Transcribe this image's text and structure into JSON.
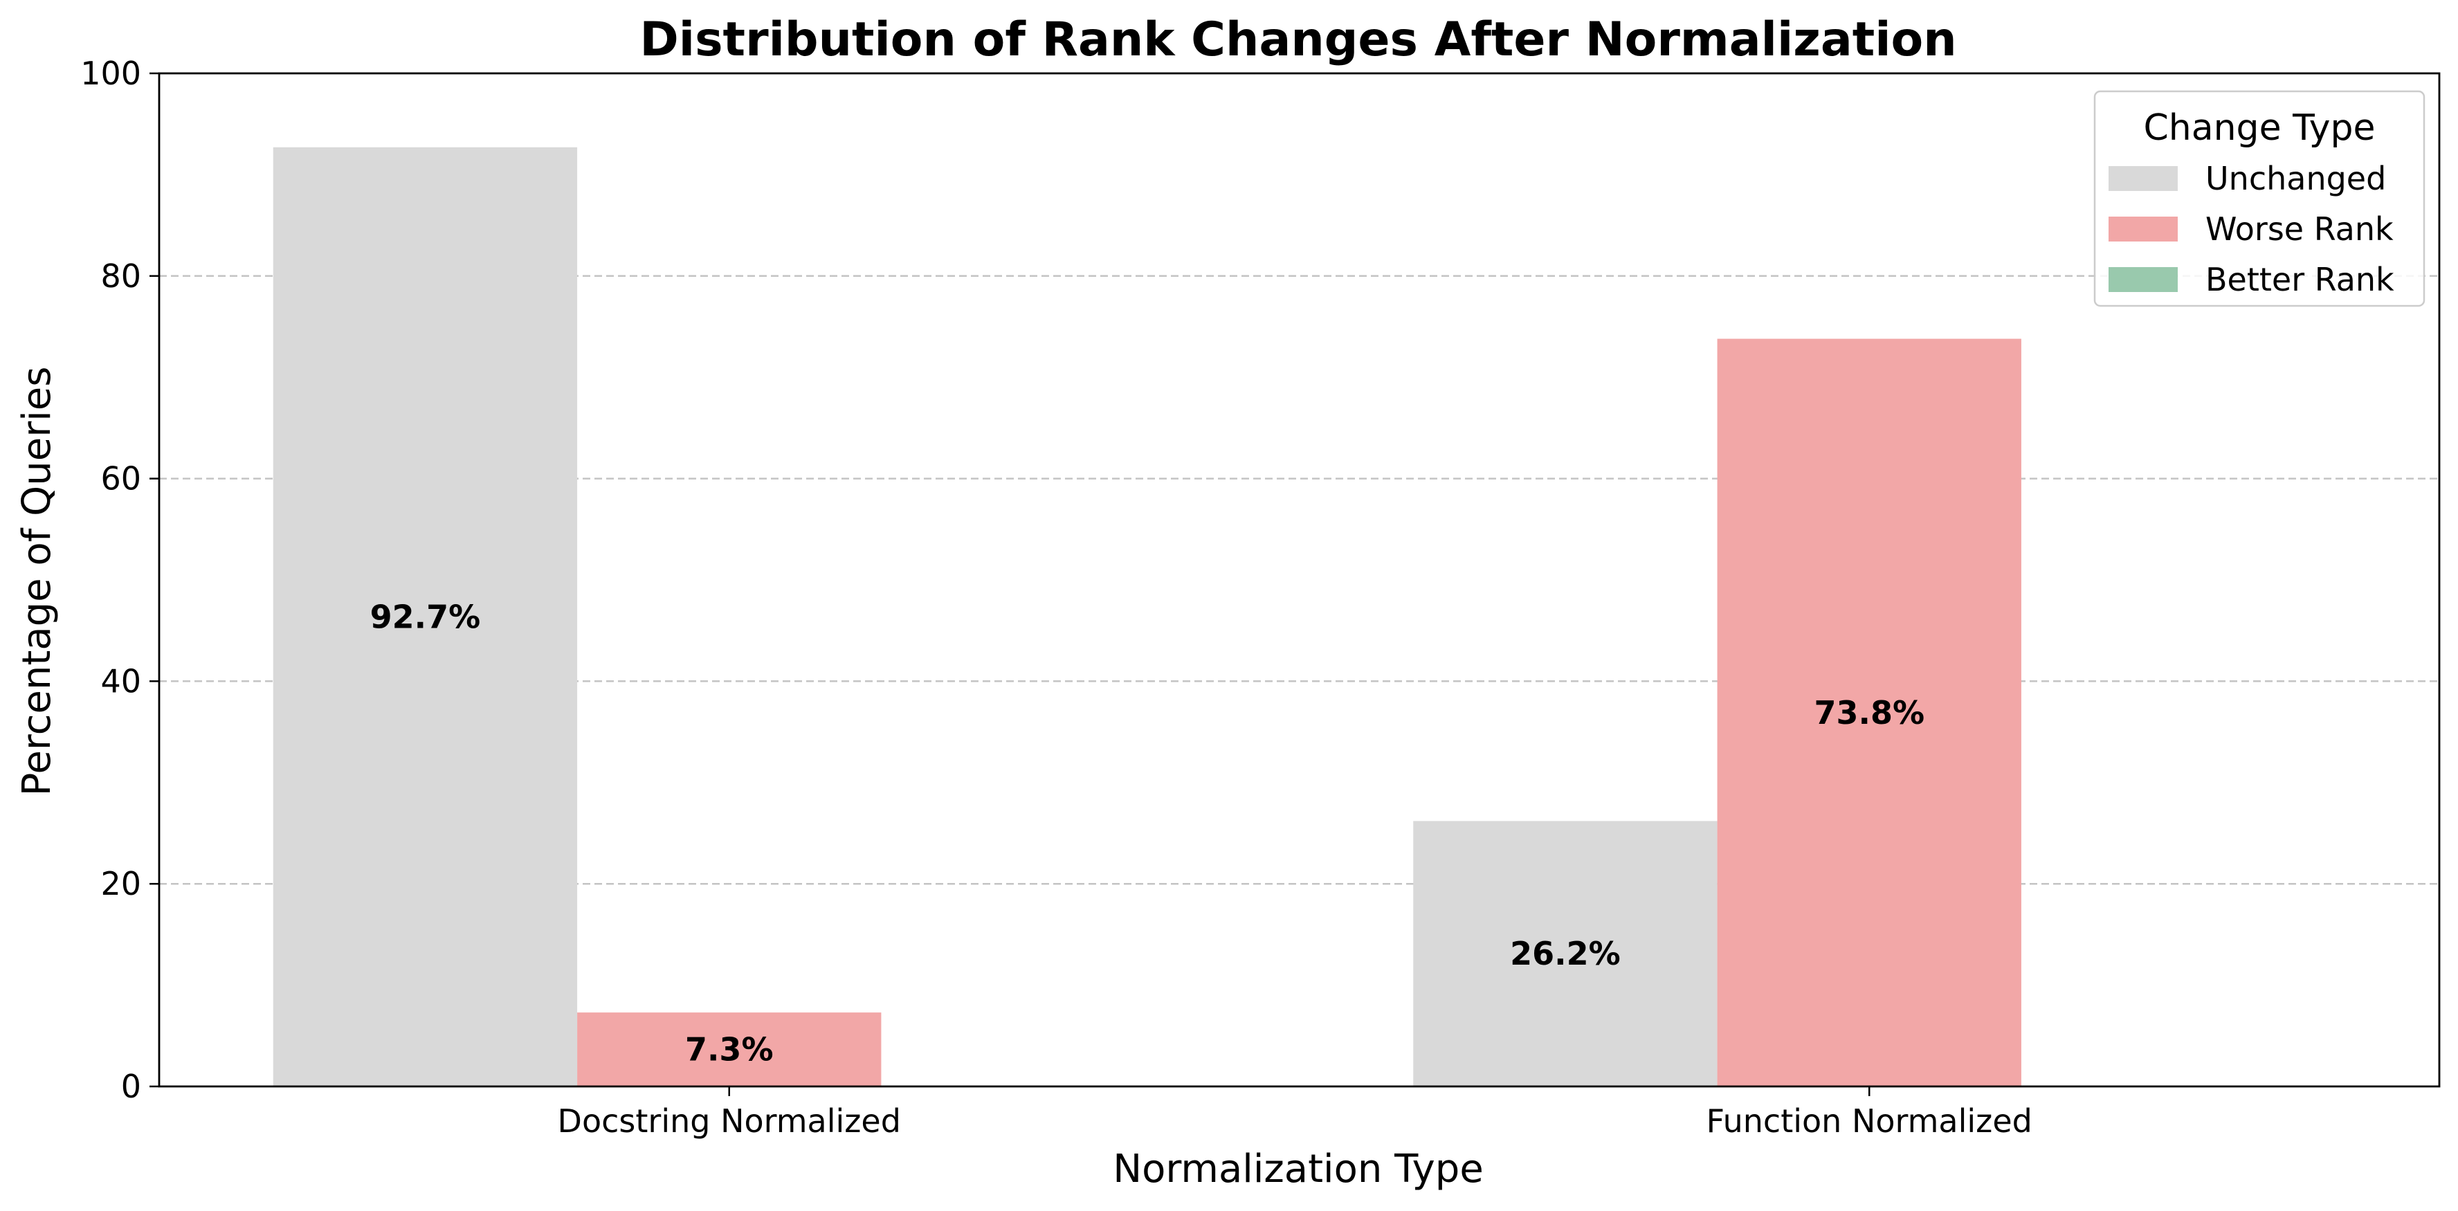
{
  "chart_data": {
    "type": "bar",
    "title": "Distribution of Rank Changes After Normalization",
    "xlabel": "Normalization Type",
    "ylabel": "Percentage of Queries",
    "categories": [
      "Docstring Normalized",
      "Function Normalized"
    ],
    "series": [
      {
        "name": "Unchanged",
        "color": "#d9d9d9",
        "values": [
          92.7,
          26.2
        ],
        "labels": [
          "92.7%",
          "26.2%"
        ]
      },
      {
        "name": "Worse Rank",
        "color": "#f2a7a7",
        "values": [
          7.3,
          73.8
        ],
        "labels": [
          "7.3%",
          "73.8%"
        ]
      },
      {
        "name": "Better Rank",
        "color": "#99c9ad",
        "values": [
          0,
          0
        ],
        "labels": [
          "",
          ""
        ]
      }
    ],
    "ylim": [
      0,
      100
    ],
    "yticks": [
      "0",
      "20",
      "40",
      "60",
      "80",
      "100"
    ],
    "grid": true,
    "legend": {
      "title": "Change Type",
      "placement": "top-right"
    }
  }
}
